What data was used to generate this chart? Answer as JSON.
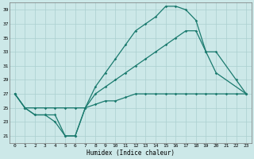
{
  "xlabel": "Humidex (Indice chaleur)",
  "xlim": [
    -0.5,
    23.5
  ],
  "ylim": [
    20,
    40
  ],
  "xticks": [
    0,
    1,
    2,
    3,
    4,
    5,
    6,
    7,
    8,
    9,
    10,
    11,
    12,
    13,
    14,
    15,
    16,
    17,
    18,
    19,
    20,
    21,
    22,
    23
  ],
  "yticks": [
    21,
    23,
    25,
    27,
    29,
    31,
    33,
    35,
    37,
    39
  ],
  "bg_color": "#cce8e8",
  "line_color": "#1a7a6e",
  "grid_color": "#aacfcf",
  "lines": [
    {
      "x": [
        0,
        1,
        2,
        3,
        4,
        5,
        6,
        7,
        8,
        9,
        10,
        11,
        12,
        13,
        14,
        15,
        16,
        17,
        18,
        19,
        20,
        23
      ],
      "y": [
        27,
        25,
        24,
        24,
        23,
        21,
        21,
        25,
        28,
        30,
        32,
        34,
        36,
        37,
        38,
        39.5,
        39.5,
        39,
        37.5,
        33,
        30,
        27
      ]
    },
    {
      "x": [
        0,
        1,
        2,
        3,
        4,
        5,
        6,
        7,
        8,
        9,
        10,
        11,
        12,
        13,
        14,
        15,
        16,
        17,
        18,
        19,
        20,
        22,
        23
      ],
      "y": [
        27,
        25,
        24,
        24,
        24,
        21,
        21,
        25,
        27,
        28,
        29,
        30,
        31,
        32,
        33,
        34,
        35,
        36,
        36,
        33,
        33,
        29,
        27
      ]
    },
    {
      "x": [
        0,
        1,
        2,
        3,
        4,
        5,
        6,
        7,
        8,
        9,
        10,
        11,
        12,
        13,
        14,
        15,
        16,
        17,
        18,
        19,
        20,
        21,
        22,
        23
      ],
      "y": [
        27,
        25,
        25,
        25,
        25,
        25,
        25,
        25,
        25.5,
        26,
        26,
        26.5,
        27,
        27,
        27,
        27,
        27,
        27,
        27,
        27,
        27,
        27,
        27,
        27
      ]
    }
  ]
}
